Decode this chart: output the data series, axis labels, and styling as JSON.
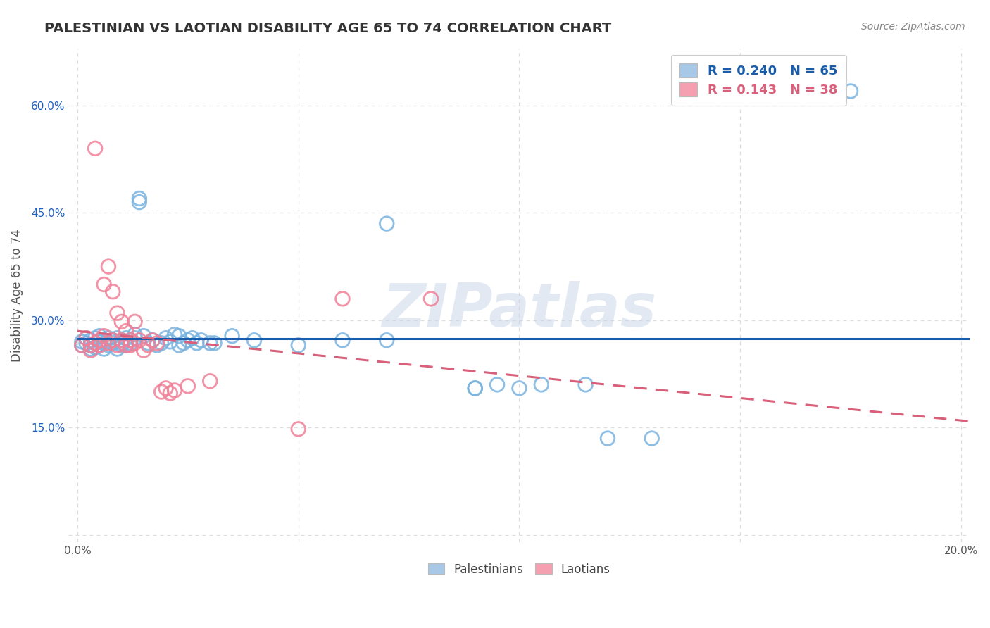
{
  "title": "PALESTINIAN VS LAOTIAN DISABILITY AGE 65 TO 74 CORRELATION CHART",
  "source": "Source: ZipAtlas.com",
  "ylabel": "Disability Age 65 to 74",
  "xlim": [
    -0.002,
    0.202
  ],
  "ylim": [
    -0.01,
    0.68
  ],
  "xticks": [
    0.0,
    0.05,
    0.1,
    0.15,
    0.2
  ],
  "xticklabels": [
    "0.0%",
    "",
    "",
    "",
    "20.0%"
  ],
  "yticks": [
    0.0,
    0.15,
    0.3,
    0.45,
    0.6
  ],
  "yticklabels": [
    "",
    "15.0%",
    "30.0%",
    "45.0%",
    "60.0%"
  ],
  "palestinian_color": "#7ab3de",
  "laotian_color": "#f08098",
  "palestinian_R": 0.24,
  "palestinian_N": 65,
  "laotian_R": 0.143,
  "laotian_N": 38,
  "watermark": "ZIPatlas",
  "grid_color": "#dddddd",
  "legend_box_color_pal": "#a8c8e8",
  "legend_box_color_lao": "#f4a0b0",
  "pal_line_color": "#1a5dab",
  "lao_line_color": "#d9607a",
  "palestinian_points": [
    [
      0.001,
      0.265
    ],
    [
      0.001,
      0.27
    ],
    [
      0.002,
      0.268
    ],
    [
      0.002,
      0.275
    ],
    [
      0.003,
      0.26
    ],
    [
      0.003,
      0.265
    ],
    [
      0.003,
      0.272
    ],
    [
      0.004,
      0.268
    ],
    [
      0.004,
      0.275
    ],
    [
      0.004,
      0.262
    ],
    [
      0.005,
      0.27
    ],
    [
      0.005,
      0.278
    ],
    [
      0.005,
      0.265
    ],
    [
      0.006,
      0.272
    ],
    [
      0.006,
      0.268
    ],
    [
      0.006,
      0.26
    ],
    [
      0.007,
      0.275
    ],
    [
      0.007,
      0.265
    ],
    [
      0.008,
      0.272
    ],
    [
      0.008,
      0.268
    ],
    [
      0.009,
      0.275
    ],
    [
      0.009,
      0.26
    ],
    [
      0.01,
      0.272
    ],
    [
      0.01,
      0.265
    ],
    [
      0.01,
      0.268
    ],
    [
      0.011,
      0.275
    ],
    [
      0.011,
      0.265
    ],
    [
      0.012,
      0.272
    ],
    [
      0.012,
      0.268
    ],
    [
      0.013,
      0.275
    ],
    [
      0.013,
      0.28
    ],
    [
      0.014,
      0.465
    ],
    [
      0.014,
      0.47
    ],
    [
      0.015,
      0.278
    ],
    [
      0.016,
      0.268
    ],
    [
      0.017,
      0.272
    ],
    [
      0.018,
      0.265
    ],
    [
      0.019,
      0.268
    ],
    [
      0.02,
      0.275
    ],
    [
      0.021,
      0.27
    ],
    [
      0.022,
      0.28
    ],
    [
      0.023,
      0.278
    ],
    [
      0.023,
      0.265
    ],
    [
      0.024,
      0.268
    ],
    [
      0.025,
      0.272
    ],
    [
      0.026,
      0.275
    ],
    [
      0.027,
      0.268
    ],
    [
      0.028,
      0.272
    ],
    [
      0.03,
      0.268
    ],
    [
      0.031,
      0.268
    ],
    [
      0.035,
      0.278
    ],
    [
      0.04,
      0.272
    ],
    [
      0.05,
      0.265
    ],
    [
      0.06,
      0.272
    ],
    [
      0.07,
      0.272
    ],
    [
      0.09,
      0.205
    ],
    [
      0.09,
      0.205
    ],
    [
      0.095,
      0.21
    ],
    [
      0.1,
      0.205
    ],
    [
      0.105,
      0.21
    ],
    [
      0.115,
      0.21
    ],
    [
      0.12,
      0.135
    ],
    [
      0.13,
      0.135
    ],
    [
      0.175,
      0.62
    ],
    [
      0.07,
      0.435
    ]
  ],
  "laotian_points": [
    [
      0.001,
      0.265
    ],
    [
      0.002,
      0.275
    ],
    [
      0.003,
      0.258
    ],
    [
      0.003,
      0.265
    ],
    [
      0.004,
      0.268
    ],
    [
      0.004,
      0.54
    ],
    [
      0.005,
      0.272
    ],
    [
      0.005,
      0.265
    ],
    [
      0.006,
      0.278
    ],
    [
      0.006,
      0.35
    ],
    [
      0.007,
      0.268
    ],
    [
      0.007,
      0.375
    ],
    [
      0.008,
      0.272
    ],
    [
      0.008,
      0.34
    ],
    [
      0.009,
      0.265
    ],
    [
      0.009,
      0.31
    ],
    [
      0.01,
      0.272
    ],
    [
      0.01,
      0.298
    ],
    [
      0.011,
      0.265
    ],
    [
      0.011,
      0.285
    ],
    [
      0.012,
      0.272
    ],
    [
      0.012,
      0.265
    ],
    [
      0.013,
      0.268
    ],
    [
      0.013,
      0.298
    ],
    [
      0.014,
      0.272
    ],
    [
      0.015,
      0.258
    ],
    [
      0.016,
      0.265
    ],
    [
      0.017,
      0.272
    ],
    [
      0.018,
      0.268
    ],
    [
      0.019,
      0.2
    ],
    [
      0.02,
      0.205
    ],
    [
      0.021,
      0.198
    ],
    [
      0.022,
      0.202
    ],
    [
      0.025,
      0.208
    ],
    [
      0.03,
      0.215
    ],
    [
      0.05,
      0.148
    ],
    [
      0.06,
      0.33
    ],
    [
      0.08,
      0.33
    ]
  ]
}
